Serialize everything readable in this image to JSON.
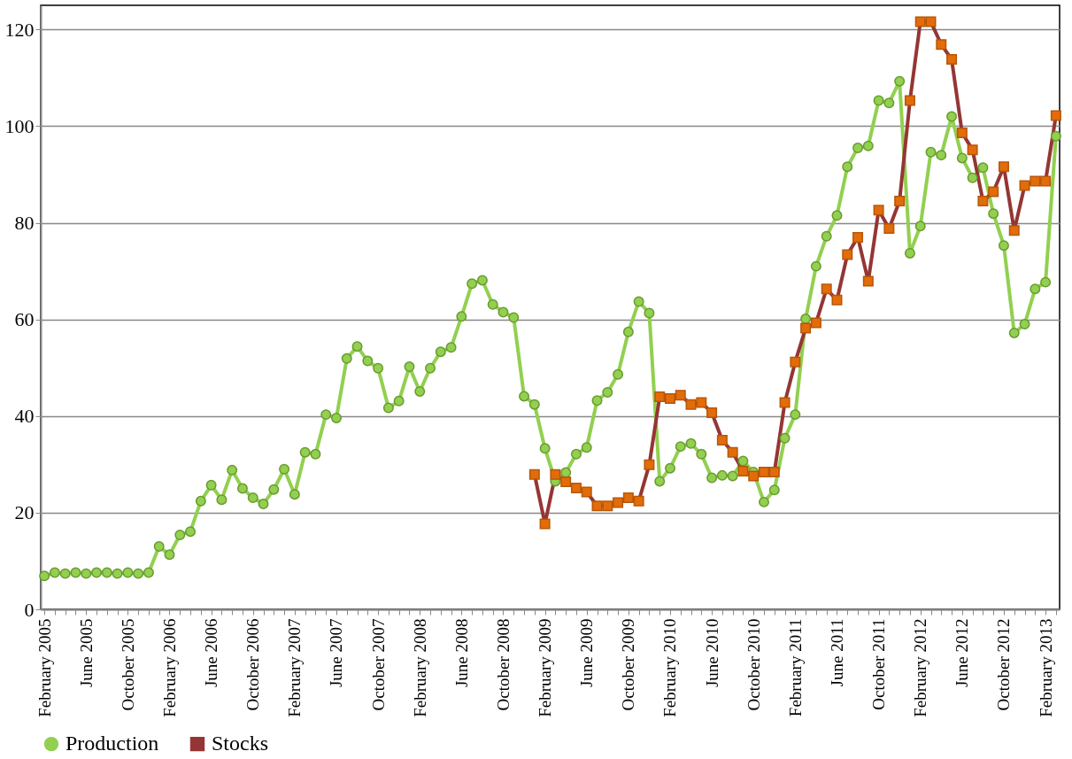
{
  "chart_data": {
    "type": "line",
    "categories": [
      "February 2005",
      null,
      null,
      null,
      "June 2005",
      null,
      null,
      null,
      "October 2005",
      null,
      null,
      null,
      "February 2006",
      null,
      null,
      null,
      "June 2006",
      null,
      null,
      null,
      "October 2006",
      null,
      null,
      null,
      "February 2007",
      null,
      null,
      null,
      "June 2007",
      null,
      null,
      null,
      "October 2007",
      null,
      null,
      null,
      "February 2008",
      null,
      null,
      null,
      "June 2008",
      null,
      null,
      null,
      "October 2008",
      null,
      null,
      null,
      "February 2009",
      null,
      null,
      null,
      "June 2009",
      null,
      null,
      null,
      "October 2009",
      null,
      null,
      null,
      "February 2010",
      null,
      null,
      null,
      "June 2010",
      null,
      null,
      null,
      "October 2010",
      null,
      null,
      null,
      "February 2011",
      null,
      null,
      null,
      "June 2011",
      null,
      null,
      null,
      "October 2011",
      null,
      null,
      null,
      "February 2012",
      null,
      null,
      null,
      "June 2012",
      null,
      null,
      null,
      "October 2012",
      null,
      null,
      null,
      "February 2013",
      null
    ],
    "series": [
      {
        "name": "Production",
        "color": "#92d050",
        "marker": "circle",
        "values": [
          6.9,
          7.6,
          7.4,
          7.6,
          7.4,
          7.6,
          7.6,
          7.4,
          7.6,
          7.4,
          7.6,
          13,
          11.3,
          15.4,
          16.1,
          22.4,
          25.7,
          22.7,
          28.8,
          25,
          23.1,
          21.8,
          24.8,
          29,
          23.8,
          32.5,
          32.1,
          40.3,
          39.6,
          51.9,
          54.4,
          51.4,
          49.9,
          41.7,
          43.1,
          50.2,
          45.1,
          49.9,
          53.3,
          54.2,
          60.6,
          67.4,
          68.1,
          63.1,
          61.5,
          60.4,
          44.1,
          42.4,
          33.3,
          26.5,
          28.3,
          32.1,
          33.5,
          43.2,
          44.9,
          48.6,
          57.4,
          63.7,
          61.3,
          26.5,
          29.2,
          33.7,
          34.3,
          32.1,
          27.2,
          27.7,
          27.6,
          30.7,
          28.4,
          22.2,
          24.7,
          35.4,
          40.3,
          60.1,
          71.0,
          77.2,
          81.5,
          91.6,
          95.5,
          95.9,
          105.3,
          104.8,
          109.3,
          73.7,
          79.3,
          94.6,
          94.0,
          102.0,
          93.4,
          89.3,
          91.4,
          81.9,
          75.3,
          57.2,
          59.0,
          66.3,
          67.7,
          97.9
        ]
      },
      {
        "name": "Stocks",
        "color": "#e36c09",
        "marker": "square",
        "values": [
          null,
          null,
          null,
          null,
          null,
          null,
          null,
          null,
          null,
          null,
          null,
          null,
          null,
          null,
          null,
          null,
          null,
          null,
          null,
          null,
          null,
          null,
          null,
          null,
          null,
          null,
          null,
          null,
          null,
          null,
          null,
          null,
          null,
          null,
          null,
          null,
          null,
          null,
          null,
          null,
          null,
          null,
          null,
          null,
          null,
          null,
          null,
          27.9,
          17.7,
          27.9,
          26.4,
          25.1,
          24.3,
          21.4,
          21.4,
          22.1,
          23.1,
          22.4,
          29.9,
          44.0,
          43.6,
          44.3,
          42.4,
          42.8,
          40.7,
          35.0,
          32.5,
          28.6,
          27.6,
          28.4,
          28.4,
          42.8,
          51.2,
          58.2,
          59.3,
          66.3,
          64.0,
          73.4,
          77.0,
          67.9,
          82.6,
          78.8,
          84.5,
          105.3,
          121.6,
          121.6,
          116.9,
          113.8,
          98.6,
          95.1,
          84.5,
          86.4,
          91.6,
          78.4,
          87.7,
          88.6,
          88.6,
          102.2
        ]
      }
    ],
    "ylim": [
      0,
      125
    ],
    "yticks": [
      0,
      20,
      40,
      60,
      80,
      100,
      120
    ],
    "grid": "y",
    "legend": "bottom"
  }
}
